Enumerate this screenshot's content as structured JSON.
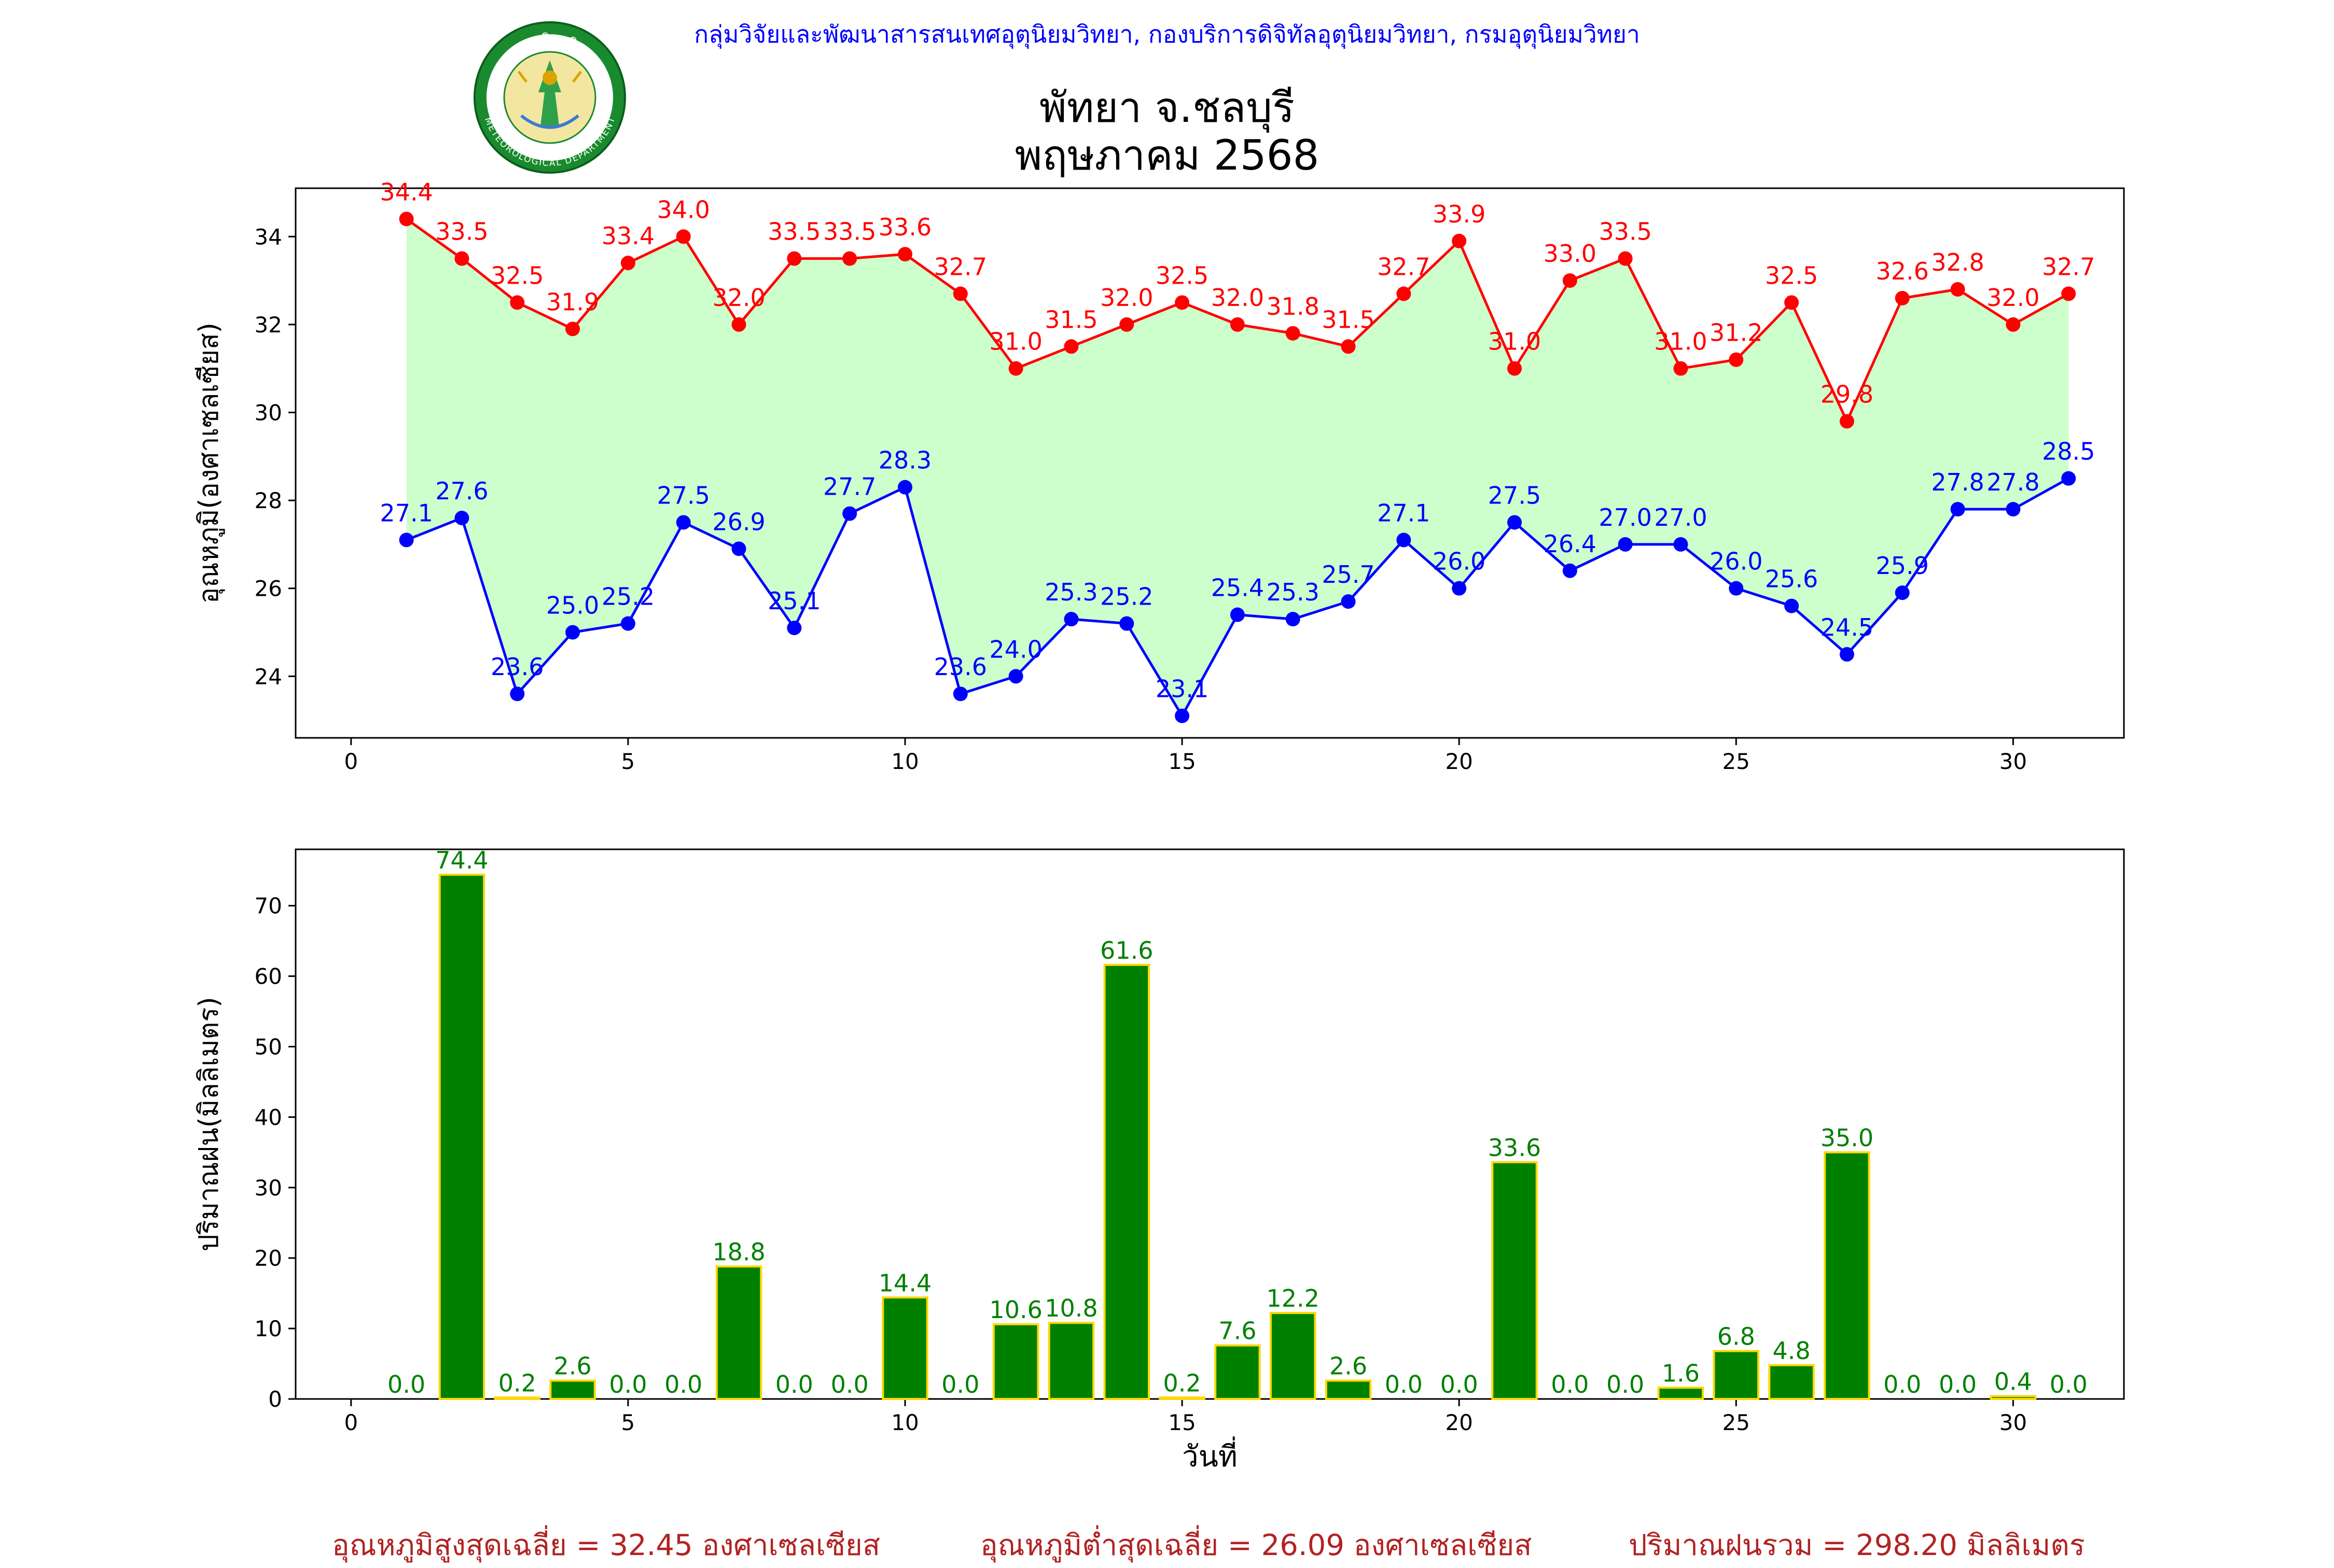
{
  "header": {
    "credit": "กลุ่มวิจัยและพัฒนาสารสนเทศอุตุนิยมวิทยา, กองบริการดิจิทัลอุตุนิยมวิทยา, กรมอุตุนิยมวิทยา",
    "title_line1": "พัทยา จ.ชลบุรี",
    "title_line2": "พฤษภาคม 2568",
    "logo_text_top": "กรมอุตุนิยมวิทยา",
    "logo_text_bottom": "METEOROLOGICAL DEPARTMENT"
  },
  "footer": {
    "avg_max": "อุณหภูมิสูงสุดเฉลี่ย = 32.45 องศาเซลเซียส",
    "avg_min": "อุณหภูมิต่ำสุดเฉลี่ย = 26.09 องศาเซลเซียส",
    "total_rain": "ปริมาณฝนรวม = 298.20 มิลลิเมตร"
  },
  "colors": {
    "max_temp": "#ff0000",
    "min_temp": "#0000ff",
    "band_fill": "#ccffcc",
    "bar_fill": "#008000",
    "bar_edge": "#ffd700",
    "bar_label": "#008000"
  },
  "chart_data": [
    {
      "type": "line",
      "ylabel": "อุณหภูมิ(องศาเซลเซียส)",
      "xlabel": "",
      "xlim": [
        -1,
        32
      ],
      "ylim": [
        22.6,
        35.1
      ],
      "xticks": [
        0,
        5,
        10,
        15,
        20,
        25,
        30
      ],
      "yticks": [
        24,
        26,
        28,
        30,
        32,
        34
      ],
      "x": [
        1,
        2,
        3,
        4,
        5,
        6,
        7,
        8,
        9,
        10,
        11,
        12,
        13,
        14,
        15,
        16,
        17,
        18,
        19,
        20,
        21,
        22,
        23,
        24,
        25,
        26,
        27,
        28,
        29,
        30,
        31
      ],
      "series": [
        {
          "key": "max",
          "values": [
            34.4,
            33.5,
            32.5,
            31.9,
            33.4,
            34.0,
            32.0,
            33.5,
            33.5,
            33.6,
            32.7,
            31.0,
            31.5,
            32.0,
            32.5,
            32.0,
            31.8,
            31.5,
            32.7,
            33.9,
            31.0,
            33.0,
            33.5,
            31.0,
            31.2,
            32.5,
            29.8,
            32.6,
            32.8,
            32.0,
            32.7
          ]
        },
        {
          "key": "min",
          "values": [
            27.1,
            27.6,
            23.6,
            25.0,
            25.2,
            27.5,
            26.9,
            25.1,
            27.7,
            28.3,
            23.6,
            24.0,
            25.3,
            25.2,
            23.1,
            25.4,
            25.3,
            25.7,
            27.1,
            26.0,
            27.5,
            26.4,
            27.0,
            27.0,
            26.0,
            25.6,
            24.5,
            25.9,
            27.8,
            27.8,
            28.5
          ]
        }
      ],
      "grid": false
    },
    {
      "type": "bar",
      "ylabel": "ปริมาณฝน(มิลลิเมตร)",
      "xlabel": "วันที่",
      "xlim": [
        -1,
        32
      ],
      "ylim": [
        0,
        78
      ],
      "xticks": [
        0,
        5,
        10,
        15,
        20,
        25,
        30
      ],
      "yticks": [
        0,
        10,
        20,
        30,
        40,
        50,
        60,
        70
      ],
      "x": [
        1,
        2,
        3,
        4,
        5,
        6,
        7,
        8,
        9,
        10,
        11,
        12,
        13,
        14,
        15,
        16,
        17,
        18,
        19,
        20,
        21,
        22,
        23,
        24,
        25,
        26,
        27,
        28,
        29,
        30,
        31
      ],
      "values": [
        0.0,
        74.4,
        0.2,
        2.6,
        0.0,
        0.0,
        18.8,
        0.0,
        0.0,
        14.4,
        0.0,
        10.6,
        10.8,
        61.6,
        0.2,
        7.6,
        12.2,
        2.6,
        0.0,
        0.0,
        33.6,
        0.0,
        0.0,
        1.6,
        6.8,
        4.8,
        35.0,
        0.0,
        0.0,
        0.4,
        0.0
      ],
      "grid": false
    }
  ]
}
